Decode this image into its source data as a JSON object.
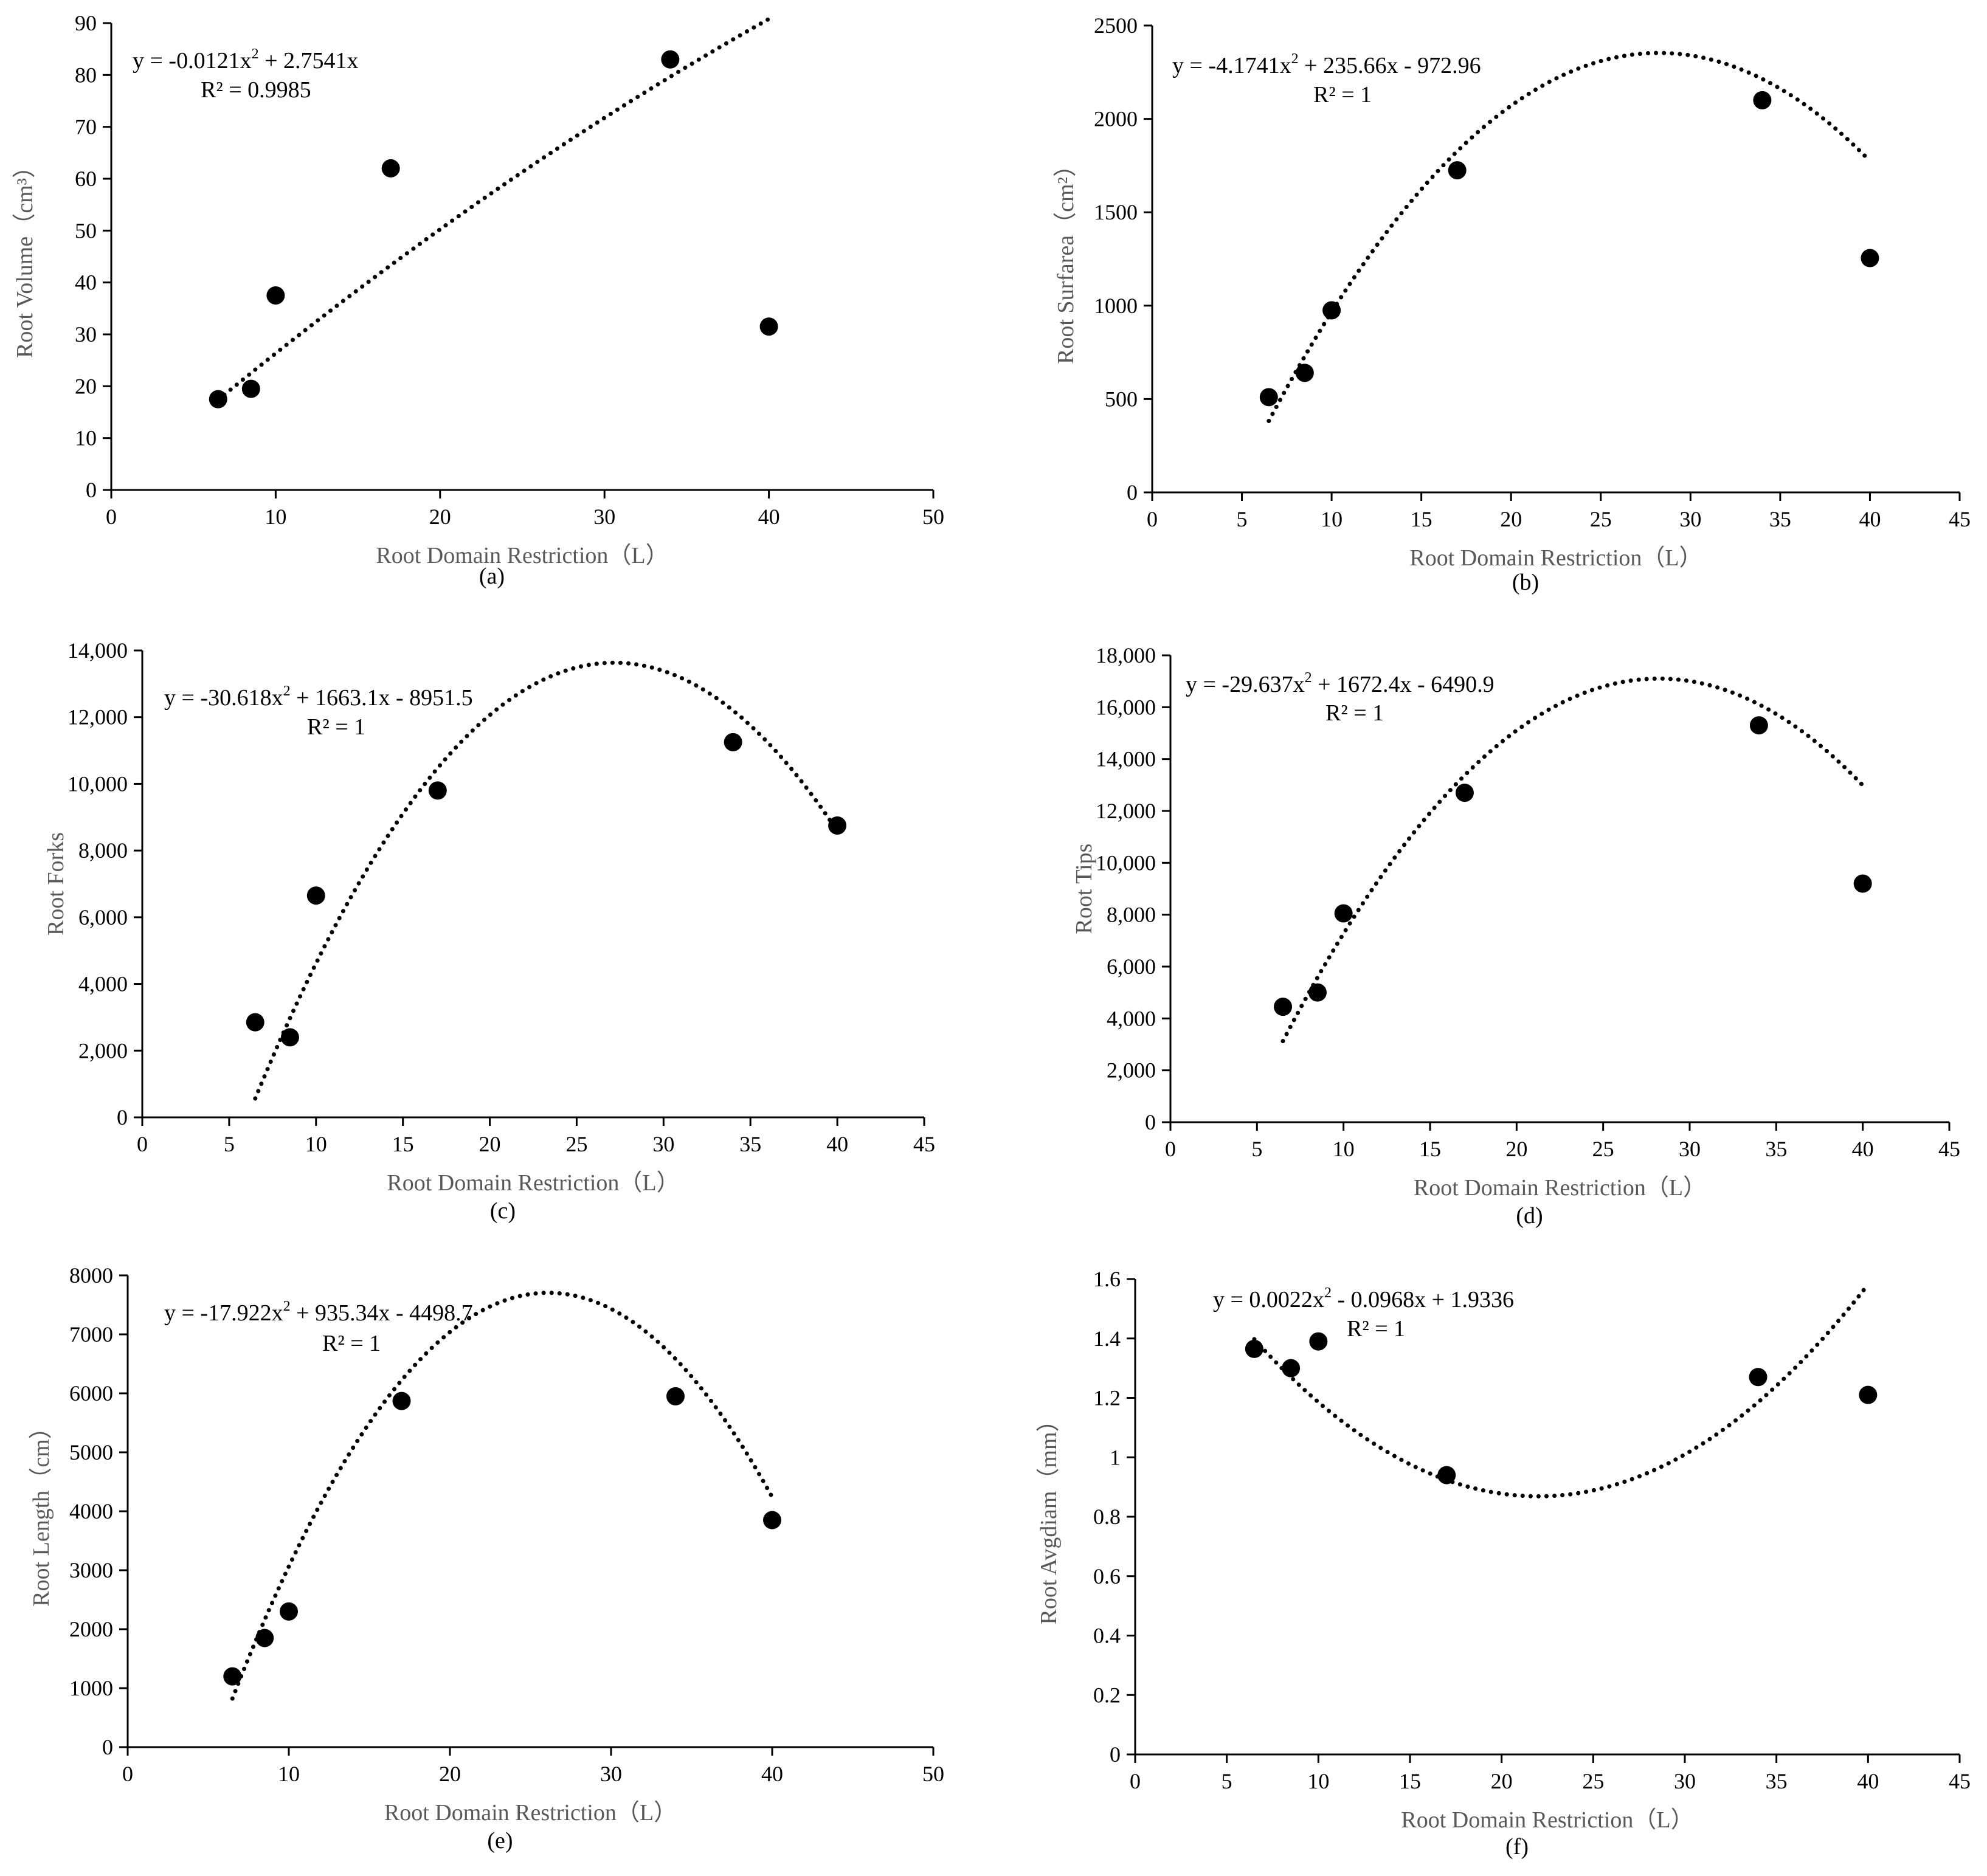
{
  "chart_data": [
    {
      "id": "a",
      "type": "scatter",
      "panel_label": "(a)",
      "xlabel": "Root Domain Restriction（L）",
      "ylabel": "Root Volume（cm³）",
      "xlim": [
        0,
        50
      ],
      "ylim": [
        0,
        90
      ],
      "xticks": [
        0,
        10,
        20,
        30,
        40,
        50
      ],
      "yticks": [
        0,
        10,
        20,
        30,
        40,
        50,
        60,
        70,
        80,
        90
      ],
      "tick_format": "plain",
      "points": {
        "x": [
          6.5,
          8.5,
          10,
          17,
          34,
          40
        ],
        "y": [
          17.5,
          19.5,
          37.5,
          62,
          83,
          31.5
        ]
      },
      "trendline": {
        "type": "polynomial",
        "coefficients": [
          -0.0121,
          2.7541,
          0
        ],
        "x_range": [
          6.5,
          40
        ]
      },
      "equation_pre": "y = -0.0121x",
      "equation_exp": "2",
      "equation_post": " + 2.7541x",
      "r2_text": "R² = 0.9985"
    },
    {
      "id": "b",
      "type": "scatter",
      "panel_label": "(b)",
      "xlabel": "Root Domain Restriction（L）",
      "ylabel": "Root Surfarea（cm²）",
      "xlim": [
        0,
        45
      ],
      "ylim": [
        0,
        2500
      ],
      "xticks": [
        0,
        5,
        10,
        15,
        20,
        25,
        30,
        35,
        40,
        45
      ],
      "yticks": [
        0,
        500,
        1000,
        1500,
        2000,
        2500
      ],
      "tick_format": "plain",
      "points": {
        "x": [
          6.5,
          8.5,
          10,
          17,
          34,
          40
        ],
        "y": [
          510,
          640,
          975,
          1725,
          2100,
          1255
        ]
      },
      "trendline": {
        "type": "polynomial",
        "coefficients": [
          -4.1741,
          235.66,
          -972.96
        ],
        "x_range": [
          6.5,
          40
        ]
      },
      "equation_pre": "y = -4.1741x",
      "equation_exp": "2",
      "equation_post": " + 235.66x - 972.96",
      "r2_text": "R² = 1"
    },
    {
      "id": "c",
      "type": "scatter",
      "panel_label": "(c)",
      "xlabel": "Root Domain Restriction（L）",
      "ylabel": "Root Forks",
      "xlim": [
        0,
        45
      ],
      "ylim": [
        0,
        14000
      ],
      "xticks": [
        0,
        5,
        10,
        15,
        20,
        25,
        30,
        35,
        40,
        45
      ],
      "yticks": [
        0,
        2000,
        4000,
        6000,
        8000,
        10000,
        12000,
        14000
      ],
      "tick_format": "comma",
      "points": {
        "x": [
          6.5,
          8.5,
          10,
          17,
          34,
          40
        ],
        "y": [
          2850,
          2400,
          6650,
          9800,
          11250,
          8750
        ]
      },
      "trendline": {
        "type": "polynomial",
        "coefficients": [
          -30.618,
          1663.1,
          -8951.5
        ],
        "x_range": [
          6.5,
          40
        ]
      },
      "equation_pre": "y = -30.618x",
      "equation_exp": "2",
      "equation_post": " + 1663.1x - 8951.5",
      "r2_text": "R² = 1"
    },
    {
      "id": "d",
      "type": "scatter",
      "panel_label": "(d)",
      "xlabel": "Root Domain Restriction（L）",
      "ylabel": "Root Tips",
      "xlim": [
        0,
        45
      ],
      "ylim": [
        0,
        18000
      ],
      "xticks": [
        0,
        5,
        10,
        15,
        20,
        25,
        30,
        35,
        40,
        45
      ],
      "yticks": [
        0,
        2000,
        4000,
        6000,
        8000,
        10000,
        12000,
        14000,
        16000,
        18000
      ],
      "tick_format": "comma",
      "points": {
        "x": [
          6.5,
          8.5,
          10,
          17,
          34,
          40
        ],
        "y": [
          4450,
          5000,
          8050,
          12700,
          15300,
          9200
        ]
      },
      "trendline": {
        "type": "polynomial",
        "coefficients": [
          -29.637,
          1672.4,
          -6490.9
        ],
        "x_range": [
          6.5,
          40
        ]
      },
      "equation_pre": "y = -29.637x",
      "equation_exp": "2",
      "equation_post": " + 1672.4x - 6490.9",
      "r2_text": "R² = 1"
    },
    {
      "id": "e",
      "type": "scatter",
      "panel_label": "(e)",
      "xlabel": "Root Domain Restriction（L）",
      "ylabel": "Root Length（cm）",
      "xlim": [
        0,
        50
      ],
      "ylim": [
        0,
        8000
      ],
      "xticks": [
        0,
        10,
        20,
        30,
        40,
        50
      ],
      "yticks": [
        0,
        1000,
        2000,
        3000,
        4000,
        5000,
        6000,
        7000,
        8000
      ],
      "tick_format": "plain",
      "points": {
        "x": [
          6.5,
          8.5,
          10,
          17,
          34,
          40
        ],
        "y": [
          1200,
          1850,
          2300,
          5870,
          5950,
          3850
        ]
      },
      "trendline": {
        "type": "polynomial",
        "coefficients": [
          -17.922,
          935.34,
          -4498.7
        ],
        "x_range": [
          6.5,
          40
        ]
      },
      "equation_pre": "y = -17.922x",
      "equation_exp": "2",
      "equation_post": " + 935.34x - 4498.7",
      "r2_text": "R² = 1"
    },
    {
      "id": "f",
      "type": "scatter",
      "panel_label": "(f)",
      "xlabel": "Root Domain Restriction（L）",
      "ylabel": "Root Avgdiam（mm）",
      "xlim": [
        0,
        45
      ],
      "ylim": [
        0,
        1.6
      ],
      "xticks": [
        0,
        5,
        10,
        15,
        20,
        25,
        30,
        35,
        40,
        45
      ],
      "yticks": [
        0,
        0.2,
        0.4,
        0.6,
        0.8,
        1,
        1.2,
        1.4,
        1.6
      ],
      "tick_format": "decimal",
      "points": {
        "x": [
          6.5,
          8.5,
          10,
          17,
          34,
          40
        ],
        "y": [
          1.365,
          1.3,
          1.39,
          0.94,
          1.27,
          1.21
        ]
      },
      "trendline": {
        "type": "polynomial",
        "coefficients": [
          0.0022,
          -0.0968,
          1.9336
        ],
        "x_range": [
          6.5,
          40
        ]
      },
      "equation_pre": "y = 0.0022x",
      "equation_exp": "2",
      "equation_post": " - 0.0968x + 1.9336",
      "r2_text": "R² = 1"
    }
  ]
}
